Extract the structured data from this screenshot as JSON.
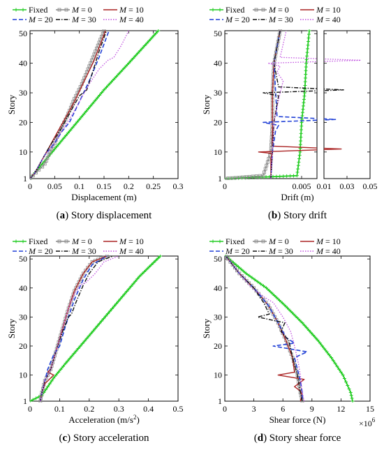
{
  "legend": [
    {
      "name": "Fixed",
      "color": "#22cc22",
      "dash": "",
      "marker": "plus",
      "sup": ""
    },
    {
      "name": "M = 0",
      "color": "#888888",
      "dash": "",
      "marker": "square",
      "sup": ""
    },
    {
      "name": "M = 10",
      "color": "#aa2222",
      "dash": "",
      "marker": "",
      "sup": ""
    },
    {
      "name": "M = 20",
      "color": "#1f3fd6",
      "dash": "6,3",
      "marker": "",
      "sup": ""
    },
    {
      "name": "M = 30",
      "color": "#111111",
      "dash": "6,2,1.5,2",
      "marker": "",
      "sup": ""
    },
    {
      "name": "M = 40",
      "color": "#c050e0",
      "dash": "1.5,2",
      "marker": "",
      "sup": ""
    }
  ],
  "chart_data": [
    {
      "type": "line",
      "panel": "a",
      "caption": [
        "(",
        "a",
        ") Story displacement"
      ],
      "xlabel": "Displacement (m)",
      "ylabel": "Story",
      "xlim": [
        0,
        0.3
      ],
      "ylim": [
        1,
        51
      ],
      "xticks": [
        "0",
        "0.05",
        "0.1",
        "0.15",
        "0.2",
        "0.25",
        "0.3"
      ],
      "yticks": [
        "1",
        "10",
        "20",
        "30",
        "40",
        "50"
      ],
      "series": [
        {
          "name": "Fixed",
          "x": [
            0,
            0.02,
            0.05,
            0.1,
            0.15,
            0.2,
            0.26
          ],
          "y": [
            1,
            5,
            11,
            21,
            31,
            40,
            51
          ]
        },
        {
          "name": "M = 0",
          "x": [
            0,
            0.006,
            0.012,
            0.018,
            0.025,
            0.03,
            0.033,
            0.04,
            0.05,
            0.06,
            0.075,
            0.09,
            0.105,
            0.12,
            0.135,
            0.15
          ],
          "y": [
            1,
            2,
            3,
            4,
            5,
            6,
            7,
            10,
            13,
            17,
            22,
            28,
            33,
            39,
            45,
            51
          ]
        },
        {
          "name": "M = 10",
          "x": [
            0,
            0.01,
            0.02,
            0.03,
            0.037,
            0.05,
            0.07,
            0.09,
            0.11,
            0.13,
            0.153
          ],
          "y": [
            1,
            3,
            6,
            9,
            11,
            15,
            21,
            27,
            34,
            41,
            51
          ]
        },
        {
          "name": "M = 20",
          "x": [
            0,
            0.01,
            0.02,
            0.03,
            0.04,
            0.05,
            0.065,
            0.08,
            0.1,
            0.12,
            0.14,
            0.16
          ],
          "y": [
            1,
            3,
            6,
            9,
            11,
            13,
            17,
            20,
            27,
            34,
            42,
            51
          ]
        },
        {
          "name": "M = 30",
          "x": [
            0,
            0.01,
            0.02,
            0.03,
            0.04,
            0.06,
            0.08,
            0.1,
            0.115,
            0.125,
            0.14,
            0.155
          ],
          "y": [
            1,
            3,
            6,
            9,
            12,
            17,
            23,
            29,
            31,
            36,
            44,
            51
          ]
        },
        {
          "name": "M = 40",
          "x": [
            0,
            0.01,
            0.02,
            0.03,
            0.045,
            0.06,
            0.08,
            0.1,
            0.12,
            0.14,
            0.158,
            0.17,
            0.185,
            0.2
          ],
          "y": [
            1,
            3,
            6,
            9,
            12,
            16,
            21,
            27,
            33,
            38,
            41,
            42,
            46,
            51
          ]
        }
      ]
    },
    {
      "type": "line",
      "panel": "b",
      "caption": [
        "(",
        "b",
        ") Story drift"
      ],
      "xlabel": "Drift (m)",
      "ylabel": "Story",
      "xlim": [
        0,
        0.05
      ],
      "ylim": [
        1,
        51
      ],
      "xticks": [
        "0",
        "0.005",
        "0.01",
        "0.03",
        "0.05"
      ],
      "yticks": [
        "1",
        "10",
        "20",
        "30",
        "40",
        "50"
      ],
      "series": [
        {
          "name": "Fixed",
          "x": [
            0,
            0.0047,
            0.0049,
            0.005,
            0.0052,
            0.0053,
            0.0055
          ],
          "y": [
            1,
            2,
            10,
            20,
            30,
            40,
            51
          ]
        },
        {
          "name": "M = 0",
          "x": [
            0,
            0.0025,
            0.003,
            0.0031,
            0.0031,
            0.0032,
            0.0036
          ],
          "y": [
            1,
            2,
            10,
            20,
            30,
            40,
            51
          ]
        },
        {
          "name": "M = 10",
          "x": [
            0.003,
            0.003,
            0.0031,
            0.0022,
            0.025,
            0.0031,
            0.0031,
            0.0032,
            0.0036
          ],
          "y": [
            1,
            8,
            9.5,
            10,
            11,
            12,
            30,
            40,
            51
          ]
        },
        {
          "name": "M = 20",
          "x": [
            0.003,
            0.0031,
            0.0033,
            0.0035,
            0.0025,
            0.02,
            0.0034,
            0.0032,
            0.0036
          ],
          "y": [
            1,
            10,
            17,
            19,
            20,
            21,
            22,
            40,
            51
          ]
        },
        {
          "name": "M = 30",
          "x": [
            0.003,
            0.0031,
            0.0032,
            0.0035,
            0.0025,
            0.027,
            0.0035,
            0.0032,
            0.0036
          ],
          "y": [
            1,
            10,
            20,
            29,
            30,
            31,
            32,
            40,
            51
          ]
        },
        {
          "name": "M = 40",
          "x": [
            0.003,
            0.0031,
            0.0032,
            0.0036,
            0.0038,
            0.0034,
            0.0036,
            0.0028,
            0.042,
            0.0036,
            0.004
          ],
          "y": [
            1,
            10,
            20,
            30,
            34,
            37,
            39,
            40,
            41,
            42,
            51
          ]
        }
      ]
    },
    {
      "type": "line",
      "panel": "c",
      "caption": [
        "(",
        "c",
        ") Story acceleration"
      ],
      "xlabel": "Acceleration (m/s",
      "xlabel_sup": "2",
      "xlabel_tail": ")",
      "ylabel": "Story",
      "xlim": [
        0,
        0.5
      ],
      "ylim": [
        1,
        51
      ],
      "xticks": [
        "0",
        "0.1",
        "0.2",
        "0.3",
        "0.4",
        "0.5"
      ],
      "yticks": [
        "1",
        "10",
        "20",
        "30",
        "40",
        "50"
      ],
      "series": [
        {
          "name": "Fixed",
          "x": [
            0,
            0.04,
            0.08,
            0.12,
            0.17,
            0.22,
            0.27,
            0.32,
            0.37,
            0.41,
            0.44
          ],
          "y": [
            1,
            3,
            9,
            14,
            20,
            26,
            32,
            38,
            44,
            48,
            51
          ]
        },
        {
          "name": "M = 0",
          "x": [
            0.035,
            0.04,
            0.05,
            0.07,
            0.09,
            0.11,
            0.13,
            0.15,
            0.18,
            0.21,
            0.26
          ],
          "y": [
            1,
            4,
            8,
            12,
            19,
            26,
            33,
            39,
            45,
            49,
            51
          ]
        },
        {
          "name": "M = 10",
          "x": [
            0.035,
            0.04,
            0.05,
            0.08,
            0.06,
            0.07,
            0.09,
            0.11,
            0.13,
            0.15,
            0.18,
            0.21,
            0.26
          ],
          "y": [
            1,
            4,
            7,
            10,
            11,
            12,
            19,
            26,
            33,
            39,
            45,
            49,
            51
          ]
        },
        {
          "name": "M = 20",
          "x": [
            0.035,
            0.04,
            0.05,
            0.06,
            0.08,
            0.1,
            0.12,
            0.15,
            0.18,
            0.21,
            0.26
          ],
          "y": [
            1,
            4,
            8,
            12,
            17,
            20,
            27,
            36,
            43,
            48,
            51
          ]
        },
        {
          "name": "M = 30",
          "x": [
            0.035,
            0.04,
            0.05,
            0.07,
            0.09,
            0.11,
            0.13,
            0.14,
            0.155,
            0.18,
            0.2,
            0.23,
            0.28
          ],
          "y": [
            1,
            4,
            8,
            12,
            19,
            25,
            30,
            31,
            35,
            41,
            45,
            49,
            51
          ]
        },
        {
          "name": "M = 40",
          "x": [
            0.035,
            0.04,
            0.05,
            0.07,
            0.09,
            0.11,
            0.13,
            0.15,
            0.17,
            0.19,
            0.22,
            0.25,
            0.3
          ],
          "y": [
            1,
            4,
            8,
            12,
            19,
            26,
            33,
            38,
            41,
            42,
            45,
            49,
            51
          ]
        }
      ]
    },
    {
      "type": "line",
      "panel": "d",
      "caption": [
        "(",
        "d",
        ") Story shear force"
      ],
      "xlabel": "Shear force (N)",
      "ylabel": "Story",
      "exponent_base": "×10",
      "exponent_power": "6",
      "xlim": [
        0,
        15
      ],
      "ylim": [
        1,
        51
      ],
      "xticks": [
        "0",
        "3",
        "6",
        "9",
        "12",
        "15"
      ],
      "yticks": [
        "1",
        "10",
        "20",
        "30",
        "40",
        "50"
      ],
      "series": [
        {
          "name": "Fixed",
          "x": [
            0.1,
            2.2,
            4.3,
            6.2,
            8,
            9.6,
            11,
            12.2,
            13,
            13.2
          ],
          "y": [
            51,
            45,
            40,
            34,
            28,
            22,
            16,
            10,
            4,
            1
          ]
        },
        {
          "name": "M = 0",
          "x": [
            0.1,
            1.5,
            3,
            4.5,
            5.5,
            6.3,
            7,
            7.5,
            7.8,
            8
          ],
          "y": [
            51,
            45,
            40,
            34,
            28,
            22,
            16,
            10,
            4,
            1
          ]
        },
        {
          "name": "M = 10",
          "x": [
            0.1,
            1.5,
            3,
            4.5,
            5.5,
            6.3,
            7,
            7.2,
            5.5,
            8.2,
            7.2,
            7.8,
            8,
            7.8
          ],
          "y": [
            51,
            45,
            40,
            34,
            28,
            22,
            16,
            11,
            10,
            8.5,
            6,
            4.5,
            3,
            1
          ]
        },
        {
          "name": "M = 20",
          "x": [
            0.1,
            1.5,
            3,
            4.5,
            5.5,
            6.3,
            7.2,
            5,
            8.5,
            7.2,
            7.5,
            7.8,
            8,
            8
          ],
          "y": [
            51,
            45,
            40,
            34,
            28,
            23,
            21,
            20,
            18,
            16,
            12,
            8,
            4,
            1
          ]
        },
        {
          "name": "M = 30",
          "x": [
            0.1,
            1.5,
            3,
            4,
            4.6,
            3.4,
            6.2,
            5.8,
            6.6,
            7,
            7.5,
            7.8,
            8
          ],
          "y": [
            51,
            45,
            40,
            35,
            31,
            30,
            28,
            25,
            22,
            16,
            10,
            4,
            1
          ]
        },
        {
          "name": "M = 40",
          "x": [
            0.1,
            1.5,
            2.8,
            4,
            5,
            6,
            6.8,
            7.2,
            7.6,
            7.8,
            8,
            8.2
          ],
          "y": [
            51,
            45,
            40,
            37,
            35,
            30,
            25,
            20,
            14,
            10,
            4,
            1
          ]
        }
      ]
    }
  ]
}
